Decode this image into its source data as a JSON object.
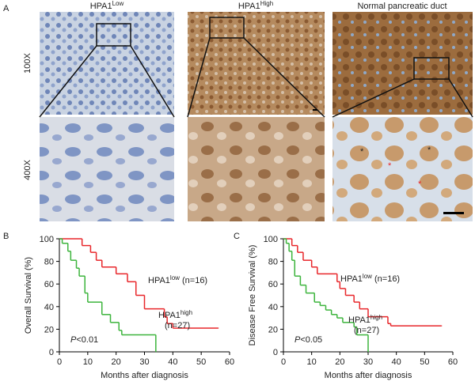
{
  "panels": {
    "a": "A",
    "b": "B",
    "c": "C"
  },
  "magnifications": [
    "100X",
    "400X"
  ],
  "columns": [
    {
      "text": "HPA1",
      "sup": "Low"
    },
    {
      "text": "HPA1",
      "sup": "High"
    },
    {
      "text": "Normal pancreatic duct"
    }
  ],
  "asterisk": "*",
  "chart_data": [
    {
      "type": "line",
      "step": true,
      "xlabel": "Months after diagnosis",
      "ylabel": "Overall Survival (%)",
      "xlim": [
        0,
        60
      ],
      "ylim": [
        0,
        100
      ],
      "xticks": [
        0,
        10,
        20,
        30,
        40,
        50,
        60
      ],
      "yticks": [
        0,
        20,
        40,
        60,
        80,
        100
      ],
      "series": [
        {
          "color": "#e8262a",
          "label": {
            "text": "HPA1",
            "sup": "low",
            "suffix": " (n=16)"
          },
          "x": [
            0,
            8,
            11,
            13,
            15,
            20,
            24,
            27,
            30,
            37,
            38,
            40,
            56
          ],
          "values": [
            100,
            94,
            88,
            81,
            75,
            69,
            62,
            50,
            38,
            31,
            25,
            21,
            21
          ]
        },
        {
          "color": "#3cb43c",
          "label": {
            "text": "HPA1",
            "sup": "high",
            "suffix": "(n=27)"
          },
          "x": [
            0,
            1,
            3,
            4,
            6,
            7,
            9,
            10,
            15,
            18,
            21,
            22,
            34
          ],
          "values": [
            100,
            96,
            89,
            81,
            74,
            67,
            52,
            44,
            33,
            26,
            19,
            15,
            0
          ]
        }
      ],
      "pvalue": {
        "p": "P",
        "rest": "<0.01"
      }
    },
    {
      "type": "line",
      "step": true,
      "xlabel": "Months after diagnosis",
      "ylabel": "Disease Free Survival (%)",
      "xlim": [
        0,
        60
      ],
      "ylim": [
        0,
        100
      ],
      "xticks": [
        0,
        10,
        20,
        30,
        40,
        50,
        60
      ],
      "yticks": [
        0,
        20,
        40,
        60,
        80,
        100
      ],
      "series": [
        {
          "color": "#e8262a",
          "label": {
            "text": "HPA1",
            "sup": "low",
            "suffix": " (n=16)"
          },
          "x": [
            0,
            3,
            5,
            7,
            10,
            12,
            19,
            20,
            22,
            25,
            27,
            30,
            37,
            38,
            56
          ],
          "values": [
            100,
            94,
            88,
            81,
            75,
            69,
            62,
            56,
            50,
            44,
            38,
            31,
            25,
            23,
            23
          ]
        },
        {
          "color": "#3cb43c",
          "label": {
            "text": "HPA1",
            "sup": "high",
            "suffix": "(n=27)"
          },
          "x": [
            0,
            1,
            2,
            3,
            4,
            6,
            8,
            11,
            13,
            15,
            17,
            19,
            21,
            25,
            26,
            30
          ],
          "values": [
            100,
            96,
            89,
            81,
            67,
            59,
            52,
            44,
            41,
            37,
            33,
            30,
            26,
            22,
            15,
            0
          ]
        }
      ],
      "pvalue": {
        "p": "P",
        "rest": "<0.05"
      }
    }
  ]
}
